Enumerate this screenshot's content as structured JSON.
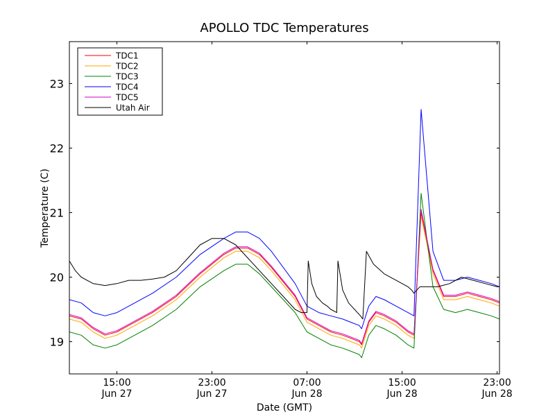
{
  "chart_data": {
    "type": "line",
    "title": "APOLLO TDC Temperatures",
    "xlabel": "Date (GMT)",
    "ylabel": "Temperature (C)",
    "xlim": [
      11.0,
      47.2
    ],
    "ylim": [
      18.5,
      23.65
    ],
    "grid": false,
    "legend_position": "top-left",
    "x_unit": "hours since 2014-06-27 00:00 GMT",
    "xticks": [
      {
        "value": 15,
        "time": "15:00",
        "date": "Jun 27"
      },
      {
        "value": 23,
        "time": "23:00",
        "date": "Jun 27"
      },
      {
        "value": 31,
        "time": "07:00",
        "date": "Jun 28"
      },
      {
        "value": 39,
        "time": "15:00",
        "date": "Jun 28"
      },
      {
        "value": 47,
        "time": "23:00",
        "date": "Jun 28"
      }
    ],
    "yticks": [
      19,
      20,
      21,
      22,
      23
    ],
    "series": [
      {
        "name": "TDC1",
        "color": "#ff0000",
        "x": [
          11.0,
          12.0,
          13.0,
          14.0,
          15.0,
          16.0,
          18.0,
          20.0,
          22.0,
          24.0,
          25.0,
          26.0,
          27.0,
          28.0,
          30.0,
          31.0,
          32.0,
          33.0,
          34.0,
          34.7,
          35.4,
          35.6,
          36.2,
          36.8,
          37.5,
          38.5,
          39.5,
          40.0,
          40.6,
          41.6,
          42.5,
          43.5,
          44.5,
          45.5,
          46.5,
          47.2
        ],
        "y": [
          19.4,
          19.35,
          19.2,
          19.1,
          19.15,
          19.25,
          19.45,
          19.7,
          20.05,
          20.35,
          20.45,
          20.45,
          20.35,
          20.15,
          19.7,
          19.35,
          19.25,
          19.15,
          19.1,
          19.05,
          19.0,
          18.95,
          19.3,
          19.45,
          19.4,
          19.3,
          19.15,
          19.1,
          21.0,
          20.1,
          19.7,
          19.7,
          19.75,
          19.7,
          19.65,
          19.6
        ]
      },
      {
        "name": "TDC2",
        "color": "#ffa500",
        "x": [
          11.0,
          12.0,
          13.0,
          14.0,
          15.0,
          16.0,
          18.0,
          20.0,
          22.0,
          24.0,
          25.0,
          26.0,
          27.0,
          28.0,
          30.0,
          31.0,
          32.0,
          33.0,
          34.0,
          34.7,
          35.4,
          35.6,
          36.2,
          36.8,
          37.5,
          38.5,
          39.5,
          40.0,
          40.6,
          41.6,
          42.5,
          43.5,
          44.5,
          45.5,
          46.5,
          47.2
        ],
        "y": [
          19.35,
          19.3,
          19.15,
          19.05,
          19.1,
          19.2,
          19.4,
          19.65,
          20.0,
          20.3,
          20.4,
          20.4,
          20.3,
          20.1,
          19.65,
          19.3,
          19.2,
          19.1,
          19.05,
          19.0,
          18.95,
          18.9,
          19.25,
          19.4,
          19.35,
          19.25,
          19.1,
          19.05,
          20.95,
          20.05,
          19.65,
          19.65,
          19.7,
          19.65,
          19.6,
          19.55
        ]
      },
      {
        "name": "TDC3",
        "color": "#008000",
        "x": [
          11.0,
          12.0,
          13.0,
          14.0,
          15.0,
          16.0,
          18.0,
          20.0,
          22.0,
          24.0,
          25.0,
          26.0,
          27.0,
          28.0,
          30.0,
          31.0,
          32.0,
          33.0,
          34.0,
          34.7,
          35.4,
          35.6,
          36.2,
          36.8,
          37.5,
          38.5,
          39.5,
          40.0,
          40.6,
          41.6,
          42.5,
          43.5,
          44.5,
          45.5,
          46.5,
          47.2
        ],
        "y": [
          19.15,
          19.1,
          18.95,
          18.9,
          18.95,
          19.05,
          19.25,
          19.5,
          19.85,
          20.1,
          20.2,
          20.2,
          20.05,
          19.85,
          19.45,
          19.15,
          19.05,
          18.95,
          18.9,
          18.85,
          18.8,
          18.75,
          19.1,
          19.25,
          19.2,
          19.1,
          18.95,
          18.9,
          21.3,
          19.85,
          19.5,
          19.45,
          19.5,
          19.45,
          19.4,
          19.35
        ]
      },
      {
        "name": "TDC4",
        "color": "#0000ff",
        "x": [
          11.0,
          12.0,
          13.0,
          14.0,
          15.0,
          16.0,
          18.0,
          20.0,
          22.0,
          24.0,
          25.0,
          26.0,
          27.0,
          28.0,
          30.0,
          31.0,
          32.0,
          33.0,
          34.0,
          34.7,
          35.4,
          35.6,
          36.2,
          36.8,
          37.5,
          38.5,
          39.5,
          40.0,
          40.6,
          41.6,
          42.5,
          43.5,
          44.5,
          45.5,
          46.5,
          47.2
        ],
        "y": [
          19.65,
          19.6,
          19.45,
          19.4,
          19.45,
          19.55,
          19.75,
          20.0,
          20.35,
          20.6,
          20.7,
          20.7,
          20.6,
          20.4,
          19.9,
          19.55,
          19.45,
          19.4,
          19.35,
          19.3,
          19.25,
          19.2,
          19.55,
          19.7,
          19.65,
          19.55,
          19.45,
          19.4,
          22.6,
          20.4,
          19.95,
          19.95,
          20.0,
          19.95,
          19.9,
          19.85
        ]
      },
      {
        "name": "TDC5",
        "color": "#cc00cc",
        "x": [
          11.0,
          12.0,
          13.0,
          14.0,
          15.0,
          16.0,
          18.0,
          20.0,
          22.0,
          24.0,
          25.0,
          26.0,
          27.0,
          28.0,
          30.0,
          31.0,
          32.0,
          33.0,
          34.0,
          34.7,
          35.4,
          35.6,
          36.2,
          36.8,
          37.5,
          38.5,
          39.5,
          40.0,
          40.6,
          41.6,
          42.5,
          43.5,
          44.5,
          45.5,
          46.5,
          47.2
        ],
        "y": [
          19.42,
          19.37,
          19.22,
          19.12,
          19.17,
          19.27,
          19.47,
          19.72,
          20.07,
          20.37,
          20.47,
          20.47,
          20.37,
          20.17,
          19.72,
          19.37,
          19.27,
          19.17,
          19.12,
          19.07,
          19.02,
          18.97,
          19.32,
          19.47,
          19.42,
          19.32,
          19.17,
          19.12,
          21.05,
          20.12,
          19.72,
          19.72,
          19.77,
          19.72,
          19.67,
          19.62
        ]
      },
      {
        "name": "Utah Air",
        "color": "#000000",
        "x": [
          11.0,
          11.5,
          12.0,
          13.0,
          14.0,
          15.0,
          16.0,
          17.0,
          18.0,
          19.0,
          20.0,
          21.0,
          22.0,
          23.0,
          24.0,
          25.0,
          26.0,
          27.0,
          28.0,
          29.0,
          30.0,
          30.5,
          31.0,
          31.1,
          31.4,
          31.8,
          32.3,
          32.7,
          33.0,
          33.5,
          33.6,
          34.0,
          34.5,
          35.0,
          35.5,
          35.7,
          36.0,
          36.3,
          36.6,
          37.5,
          38.5,
          39.5,
          39.8,
          40.0,
          40.5,
          41.0,
          42.0,
          43.0,
          44.0,
          45.0,
          46.0,
          47.0,
          47.2
        ],
        "y": [
          20.25,
          20.1,
          20.0,
          19.9,
          19.87,
          19.9,
          19.95,
          19.95,
          19.97,
          20.0,
          20.1,
          20.3,
          20.5,
          20.6,
          20.6,
          20.5,
          20.3,
          20.1,
          19.9,
          19.7,
          19.5,
          19.45,
          19.45,
          20.25,
          19.9,
          19.7,
          19.6,
          19.55,
          19.5,
          19.45,
          20.25,
          19.8,
          19.6,
          19.5,
          19.4,
          19.35,
          20.4,
          20.3,
          20.2,
          20.05,
          19.95,
          19.85,
          19.8,
          19.75,
          19.85,
          19.85,
          19.85,
          19.9,
          20.0,
          19.95,
          19.9,
          19.85,
          19.85
        ]
      }
    ]
  }
}
